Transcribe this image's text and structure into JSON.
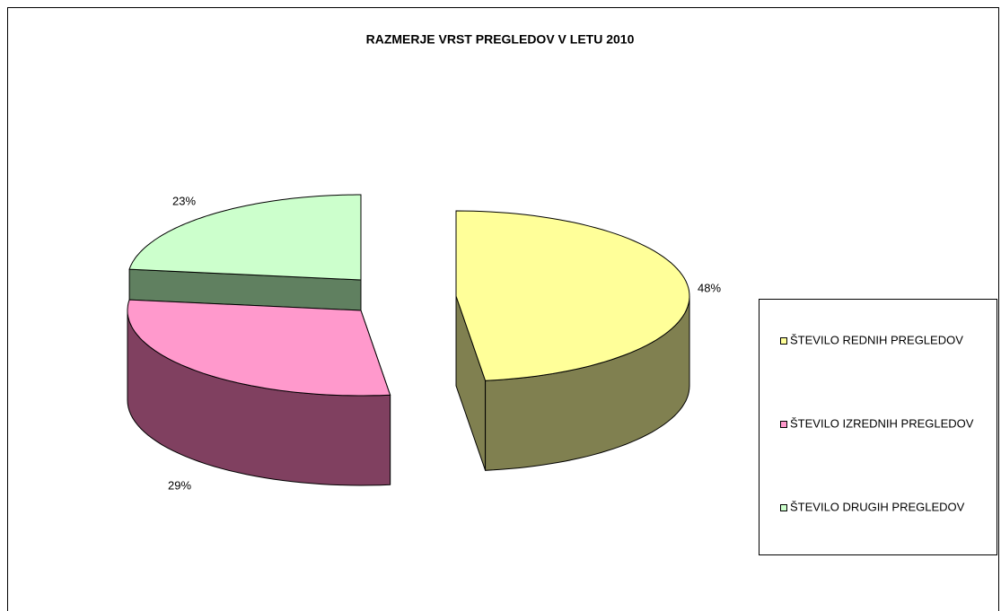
{
  "chart_data": {
    "type": "pie3d",
    "title": "RAZMERJE VRST PREGLEDOV V LETU 2010",
    "categories": [
      "ŠTEVILO REDNIH PREGLEDOV",
      "ŠTEVILO IZREDNIH PREGLEDOV",
      "ŠTEVILO DRUGIH PREGLEDOV"
    ],
    "values": [
      48,
      29,
      23
    ],
    "value_labels": [
      "48%",
      "29%",
      "23%"
    ],
    "colors": [
      "#ffff99",
      "#ff99cc",
      "#ccffcc"
    ],
    "side_colors": [
      "#808050",
      "#804060",
      "#608060"
    ],
    "legend": "right"
  }
}
